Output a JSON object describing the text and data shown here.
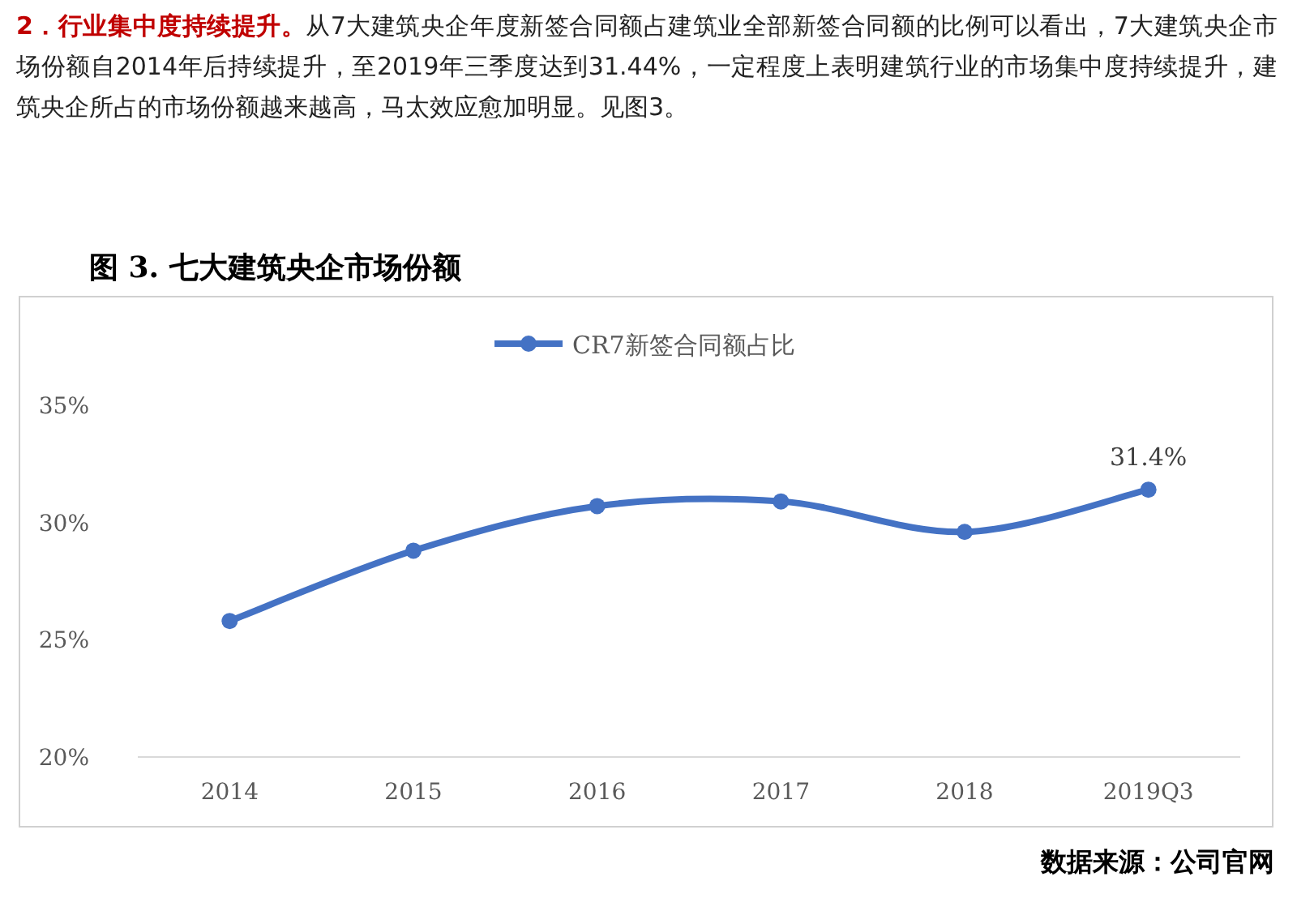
{
  "chart_data": {
    "type": "line",
    "title": "图 3. 七大建筑央企市场份额",
    "categories": [
      "2014",
      "2015",
      "2016",
      "2017",
      "2018",
      "2019Q3"
    ],
    "series": [
      {
        "name": "CR7新签合同额占比",
        "color": "#4472c4",
        "values": [
          25.8,
          28.8,
          30.7,
          30.9,
          29.6,
          31.4
        ],
        "value_labels": [
          null,
          null,
          null,
          null,
          null,
          "31.4%"
        ]
      }
    ],
    "ylim": [
      20,
      35
    ],
    "yticks": [
      {
        "value": 20,
        "label": "20%"
      },
      {
        "value": 25,
        "label": "25%"
      },
      {
        "value": 30,
        "label": "30%"
      },
      {
        "value": 35,
        "label": "35%"
      }
    ],
    "grid": false,
    "legend": "top",
    "marker": "circle",
    "line_style": "solid",
    "annotations": [
      "**2．行业集中度持续提升。**从7大建筑央企年度新签合同额占建筑业全部新签合同额的比例可以看出，7大建筑央企市场份额自2014年后持续提升，至2019年三季度达到31.44%，一定程度上表明建筑行业的市场集中度持续提升，建筑央企所占的市场份额越来越高，马太效应愈加明显。见图3。",
      "数据来源：公司官网"
    ]
  }
}
